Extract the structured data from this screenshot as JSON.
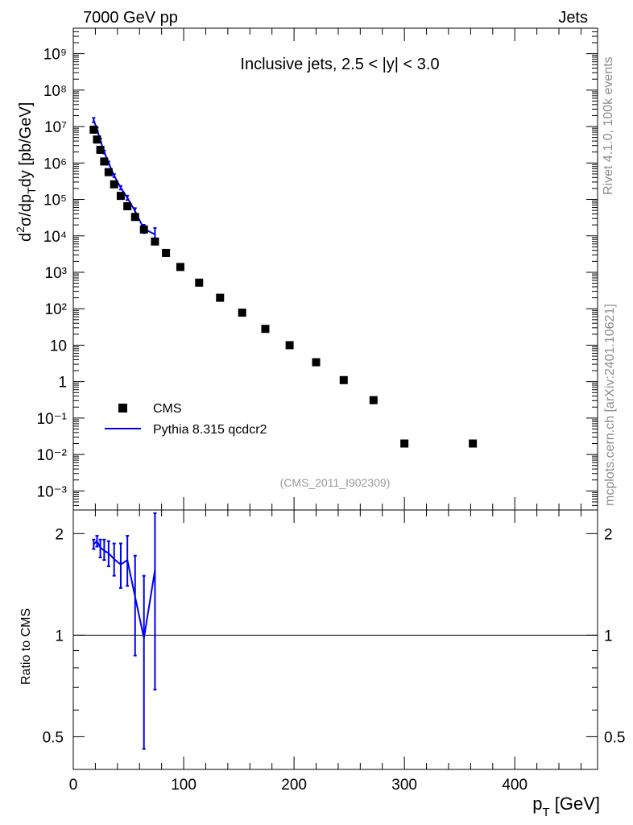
{
  "header": {
    "left": "7000 GeV pp",
    "right": "Jets"
  },
  "side_labels": {
    "rivet": "Rivet 4.1.0,  100k events",
    "mcplots": "mcplots.cern.ch [arXiv:2401.10621]"
  },
  "colors": {
    "data": "#000000",
    "mc": "#0000ee",
    "side_text": "#8c8c8c"
  },
  "chart_data": [
    {
      "type": "scatter",
      "title": "Inclusive jets, 2.5 < |y| < 3.0",
      "analysis_tag": "(CMS_2011_I902309)",
      "ylabel": "d²σ/dp_T dy [pb/GeV]",
      "yscale": "log",
      "ylim": [
        0.0003,
        5000000000.0
      ],
      "xlim": [
        0,
        475
      ],
      "ytick_labels": [
        "10⁹",
        "10⁸",
        "10⁷",
        "10⁶",
        "10⁵",
        "10⁴",
        "10³",
        "10²",
        "10",
        "1",
        "10⁻¹",
        "10⁻²",
        "10⁻³"
      ],
      "ytick_values": [
        1000000000.0,
        100000000.0,
        10000000.0,
        1000000.0,
        100000.0,
        10000.0,
        1000.0,
        100.0,
        10,
        1,
        0.1,
        0.01,
        0.001
      ],
      "legend": {
        "position": "bottom-left",
        "entries": [
          "CMS",
          "Pythia 8.315 qcdcr2"
        ]
      },
      "series": [
        {
          "name": "CMS",
          "style": "markers",
          "x": [
            18.5,
            21.5,
            24.5,
            28,
            32,
            37,
            43,
            49,
            56,
            64,
            74,
            84,
            97,
            114,
            133,
            153,
            174,
            196,
            220,
            245,
            272,
            300,
            362
          ],
          "y": [
            8200000,
            4400000,
            2300000,
            1100000,
            560000,
            260000,
            125000,
            65000,
            33000,
            15000,
            7000,
            3400,
            1400,
            520,
            200,
            78,
            28,
            10,
            3.4,
            1.1,
            0.31,
            0.02,
            0.02
          ]
        },
        {
          "name": "Pythia 8.315 qcdcr2",
          "style": "line",
          "x": [
            18.5,
            21.5,
            24.5,
            28,
            32,
            37,
            43,
            49,
            56,
            64,
            74
          ],
          "y": [
            15000000,
            8500000,
            4200000,
            2000000,
            1000000,
            450000,
            210000,
            110000,
            48000,
            15500,
            11000
          ],
          "err": [
            0.15,
            0.1,
            0.1,
            0.1,
            0.1,
            0.1,
            0.12,
            0.15,
            0.2,
            0.3,
            0.5
          ]
        }
      ]
    },
    {
      "type": "line",
      "ylabel": "Ratio to CMS",
      "xlabel": "p_T [GeV]",
      "yscale": "log",
      "ylim": [
        0.4,
        2.35
      ],
      "xlim": [
        0,
        475
      ],
      "ytick_labels": [
        "2",
        "1",
        "0.5"
      ],
      "ytick_values": [
        2,
        1,
        0.5
      ],
      "xtick_labels": [
        "0",
        "100",
        "200",
        "300",
        "400"
      ],
      "xtick_values": [
        0,
        100,
        200,
        300,
        400
      ],
      "series": [
        {
          "name": "Pythia 8.315 qcdcr2 / CMS",
          "x": [
            18.5,
            21.5,
            24.5,
            28,
            32,
            37,
            43,
            49,
            56,
            64,
            74
          ],
          "y": [
            1.86,
            1.9,
            1.82,
            1.78,
            1.75,
            1.68,
            1.62,
            1.67,
            1.3,
            0.98,
            1.56
          ],
          "ylo": [
            1.8,
            1.83,
            1.7,
            1.67,
            1.6,
            1.5,
            1.38,
            1.4,
            0.87,
            0.46,
            0.69
          ],
          "yhi": [
            1.92,
            1.97,
            1.92,
            1.92,
            1.9,
            1.87,
            1.87,
            1.97,
            1.72,
            1.5,
            2.3
          ]
        }
      ],
      "reference_line": 1
    }
  ]
}
